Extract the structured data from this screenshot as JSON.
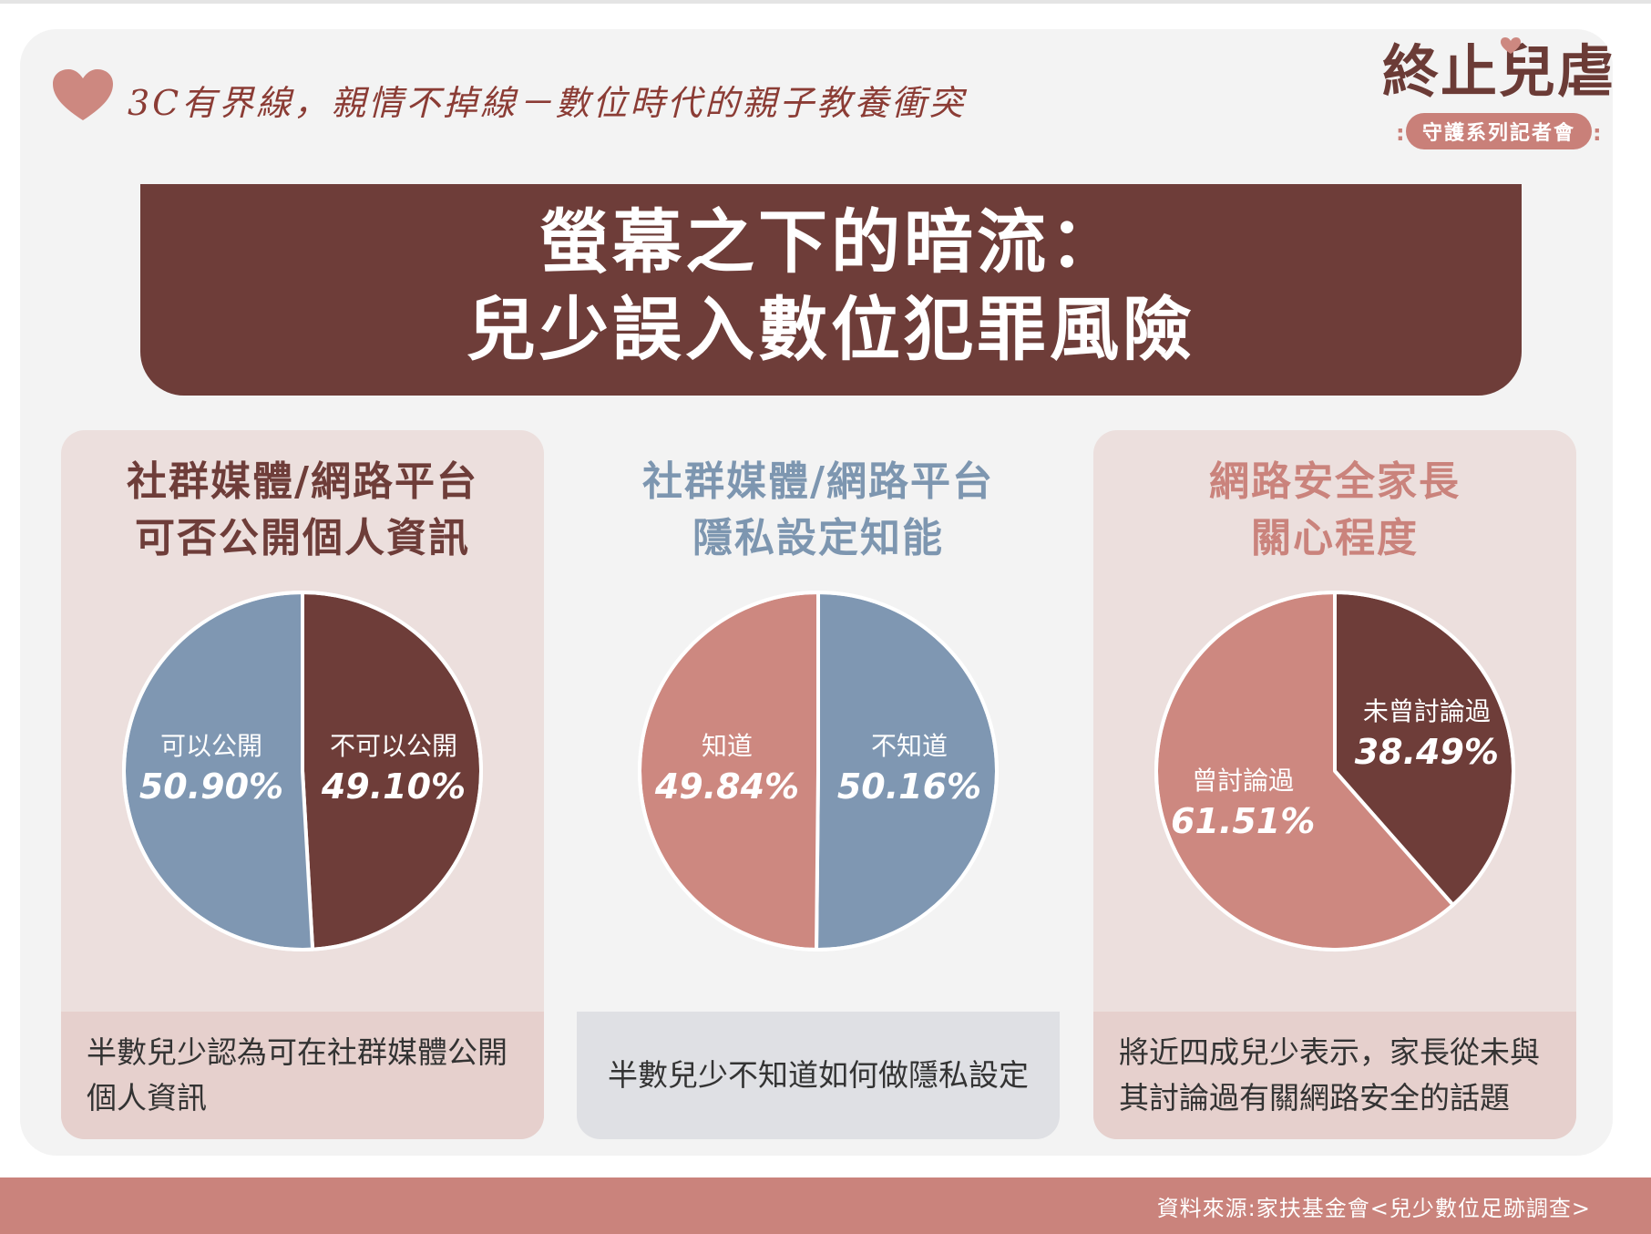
{
  "header": {
    "series_title": "3C有界線，親情不掉線－數位時代的親子教養衝突",
    "logo_text": "終止兒虐",
    "logo_subtitle": "守護系列記者會"
  },
  "banner": {
    "line1": "螢幕之下的暗流：",
    "line2": "兒少誤入數位犯罪風險"
  },
  "colors": {
    "maroon": "#6e3d39",
    "blue": "#7f97b2",
    "rose": "#cd8880",
    "white": "#ffffff"
  },
  "chart_data": [
    {
      "type": "pie",
      "title_lines": [
        "社群媒體/網路平台",
        "可否公開個人資訊"
      ],
      "slices": [
        {
          "label": "不可以公開",
          "value": 49.1,
          "display": "49.10%",
          "color": "#6e3d39"
        },
        {
          "label": "可以公開",
          "value": 50.9,
          "display": "50.90%",
          "color": "#7f97b2"
        }
      ],
      "caption": "半數兒少認為可在社群媒體公開個人資訊"
    },
    {
      "type": "pie",
      "title_lines": [
        "社群媒體/網路平台",
        "隱私設定知能"
      ],
      "slices": [
        {
          "label": "不知道",
          "value": 50.16,
          "display": "50.16%",
          "color": "#7f97b2"
        },
        {
          "label": "知道",
          "value": 49.84,
          "display": "49.84%",
          "color": "#cd8880"
        }
      ],
      "caption": "半數兒少不知道如何做隱私設定"
    },
    {
      "type": "pie",
      "title_lines": [
        "網路安全家長",
        "關心程度"
      ],
      "slices": [
        {
          "label": "未曾討論過",
          "value": 38.49,
          "display": "38.49%",
          "color": "#6e3d39"
        },
        {
          "label": "曾討論過",
          "value": 61.51,
          "display": "61.51%",
          "color": "#cd8880"
        }
      ],
      "caption": "將近四成兒少表示，家長從未與其討論過有關網路安全的話題"
    }
  ],
  "footer": {
    "source": "資料來源:家扶基金會<兒少數位足跡調查>"
  }
}
